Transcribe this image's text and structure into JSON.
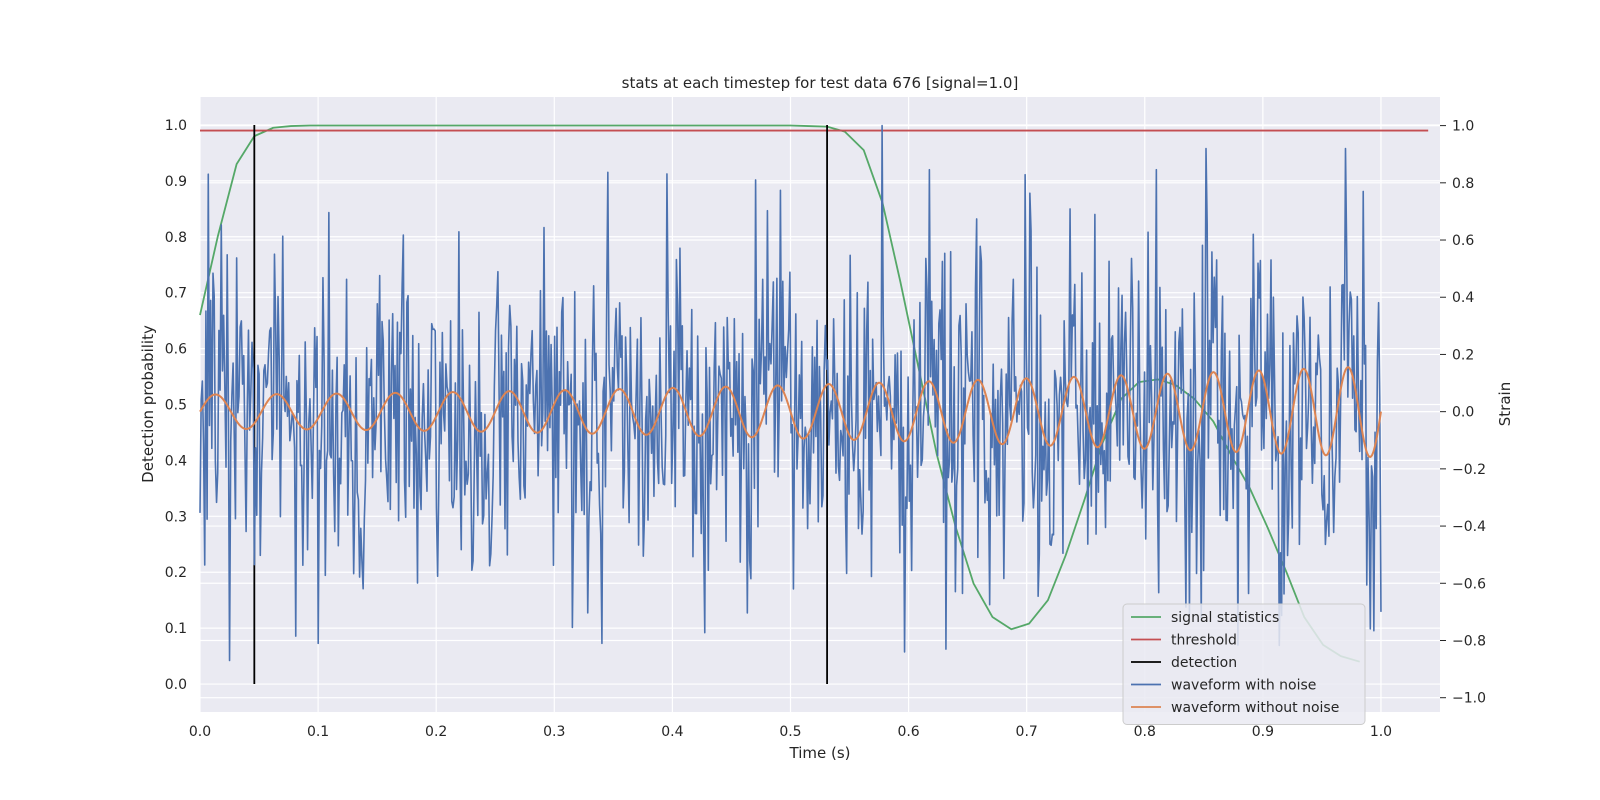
{
  "chart_data": {
    "type": "line",
    "title": "stats at each timestep for test data 676 [signal=1.0]",
    "xlabel": "Time (s)",
    "ylabel": "Detection probability",
    "y2label": "Strain",
    "xlim": [
      0.0,
      1.05
    ],
    "ylim": [
      -0.05,
      1.05
    ],
    "y2lim": [
      -1.05,
      1.1
    ],
    "xticks": [
      "0.0",
      "0.1",
      "0.2",
      "0.3",
      "0.4",
      "0.5",
      "0.6",
      "0.7",
      "0.8",
      "0.9",
      "1.0"
    ],
    "yticks": [
      "0.0",
      "0.1",
      "0.2",
      "0.3",
      "0.4",
      "0.5",
      "0.6",
      "0.7",
      "0.8",
      "0.9",
      "1.0"
    ],
    "y2ticks": [
      "−1.0",
      "−0.8",
      "−0.6",
      "−0.4",
      "−0.2",
      "0.0",
      "0.2",
      "0.4",
      "0.6",
      "0.8",
      "1.0"
    ],
    "grid": true,
    "legend_position": "lower-right",
    "series": [
      {
        "name": "signal statistics",
        "axis": "left",
        "color": "#55a868",
        "x": [
          0.0,
          0.015,
          0.031,
          0.046,
          0.062,
          0.077,
          0.093,
          0.2,
          0.3,
          0.4,
          0.5,
          0.515,
          0.531,
          0.546,
          0.562,
          0.578,
          0.593,
          0.609,
          0.624,
          0.64,
          0.655,
          0.671,
          0.687,
          0.702,
          0.718,
          0.733,
          0.749,
          0.764,
          0.78,
          0.795,
          0.811,
          0.826,
          0.842,
          0.858,
          0.873,
          0.889,
          0.904,
          0.92,
          0.935,
          0.951,
          0.966,
          0.982
        ],
        "y": [
          0.66,
          0.8,
          0.93,
          0.98,
          0.995,
          0.998,
          0.999,
          0.999,
          0.999,
          0.999,
          0.999,
          0.998,
          0.997,
          0.988,
          0.955,
          0.86,
          0.72,
          0.56,
          0.41,
          0.28,
          0.18,
          0.12,
          0.098,
          0.108,
          0.15,
          0.23,
          0.33,
          0.43,
          0.51,
          0.54,
          0.545,
          0.535,
          0.51,
          0.47,
          0.41,
          0.35,
          0.28,
          0.2,
          0.12,
          0.07,
          0.05,
          0.04
        ]
      },
      {
        "name": "threshold",
        "axis": "left",
        "color": "#c44e52",
        "x": [
          0.0,
          1.04
        ],
        "y": [
          0.99,
          0.99
        ]
      },
      {
        "name": "detection",
        "axis": "left",
        "color": "#000000",
        "segments": [
          {
            "x": 0.046,
            "y": [
              0.0,
              1.0
            ]
          },
          {
            "x": 0.531,
            "y": [
              0.0,
              1.0
            ]
          }
        ]
      },
      {
        "name": "waveform with noise",
        "axis": "right",
        "color": "#4c72b0",
        "x_start": 0.0,
        "x_end": 1.0,
        "n_points": 1000,
        "y_approx_range": [
          -0.95,
          1.0
        ],
        "noise_std": 0.28,
        "peaks": [
          {
            "x": 0.007,
            "y": 0.83
          },
          {
            "x": 0.025,
            "y": -0.87
          },
          {
            "x": 0.1,
            "y": -0.81
          },
          {
            "x": 0.34,
            "y": -0.81
          },
          {
            "x": 0.47,
            "y": 0.81
          },
          {
            "x": 0.578,
            "y": 1.0
          },
          {
            "x": 0.597,
            "y": -0.84
          },
          {
            "x": 0.632,
            "y": -0.83
          },
          {
            "x": 0.985,
            "y": 0.77
          },
          {
            "x": 1.0,
            "y": -0.7
          }
        ]
      },
      {
        "name": "waveform without noise",
        "axis": "right",
        "color": "#dd8452",
        "x_start": 0.0,
        "x_end": 1.0,
        "amplitude_start": 0.06,
        "amplitude_end": 0.16,
        "frequency_start_hz": 19,
        "frequency_end_hz": 27
      }
    ]
  }
}
